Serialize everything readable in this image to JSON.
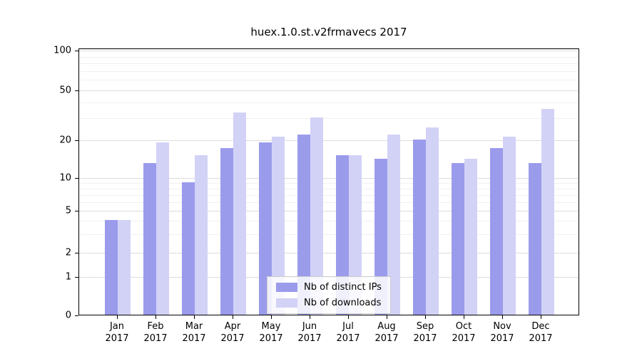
{
  "chart_data": {
    "type": "bar",
    "title": "huex.1.0.st.v2frmavecs 2017",
    "categories": [
      "Jan 2017",
      "Feb 2017",
      "Mar 2017",
      "Apr 2017",
      "May 2017",
      "Jun 2017",
      "Jul 2017",
      "Aug 2017",
      "Sep 2017",
      "Oct 2017",
      "Nov 2017",
      "Dec 2017"
    ],
    "series": [
      {
        "name": "Nb of distinct IPs",
        "color": "#9b9bec",
        "values": [
          4,
          13,
          9,
          17,
          19,
          22,
          15,
          14,
          20,
          13,
          17,
          13
        ]
      },
      {
        "name": "Nb of downloads",
        "color": "#d2d2f7",
        "values": [
          4,
          19,
          15,
          33,
          21,
          30,
          15,
          22,
          25,
          14,
          21,
          35
        ]
      }
    ],
    "yscale": "symlog",
    "yticks": [
      0,
      1,
      2,
      5,
      10,
      20,
      50,
      100
    ],
    "ylim": [
      0,
      105
    ],
    "xlabel": "",
    "ylabel": "",
    "grid": "horizontal-major-and-minor",
    "legend_position": "lower center"
  }
}
